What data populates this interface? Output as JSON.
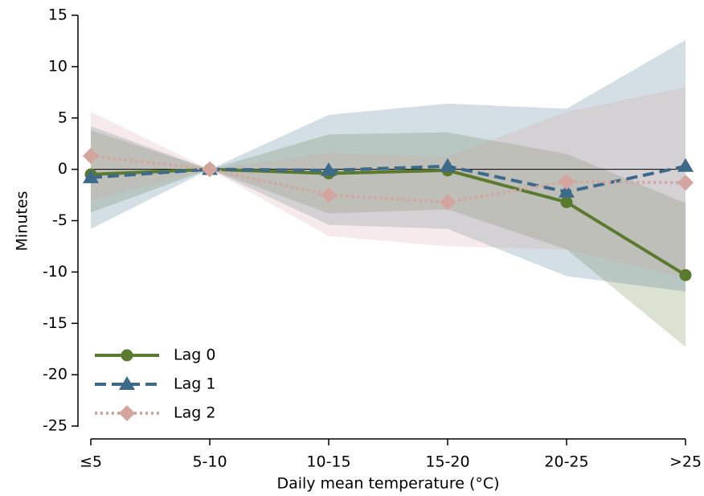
{
  "chart_data": {
    "type": "line",
    "x_label": "Daily mean temperature (°C)",
    "y_label": "Minutes",
    "categories": [
      "≤5",
      "5-10",
      "10-15",
      "15-20",
      "20-25",
      ">25"
    ],
    "ylim": [
      -25,
      15
    ],
    "yticks": [
      -25,
      -20,
      -15,
      -10,
      -5,
      0,
      5,
      10,
      15
    ],
    "hline": 0,
    "legend": "lower-left",
    "series": [
      {
        "name": "Lag 0",
        "color": "#5a7a2e",
        "marker": "circle",
        "dash": "solid",
        "values": [
          -0.5,
          0,
          -0.4,
          -0.1,
          -3.2,
          -10.3
        ],
        "lower": [
          -4.2,
          0,
          -4.3,
          -3.9,
          -7.8,
          -17.3
        ],
        "upper": [
          3.8,
          0,
          3.4,
          3.6,
          1.5,
          -3.3
        ]
      },
      {
        "name": "Lag 1",
        "color": "#3d6a8a",
        "marker": "triangle",
        "dash": "dashed",
        "values": [
          -0.8,
          0,
          -0.1,
          0.3,
          -2.2,
          0.3
        ],
        "lower": [
          -5.8,
          0,
          -5.4,
          -5.8,
          -10.4,
          -11.9
        ],
        "upper": [
          4.2,
          0,
          5.3,
          6.4,
          5.9,
          12.6
        ]
      },
      {
        "name": "Lag 2",
        "color": "#d4a59e",
        "marker": "diamond",
        "dash": "dotted",
        "values": [
          1.3,
          0,
          -2.5,
          -3.2,
          -1.2,
          -1.3
        ],
        "lower": [
          -3.0,
          0,
          -6.5,
          -7.5,
          -7.8,
          -10.6
        ],
        "upper": [
          5.6,
          0,
          1.6,
          1.2,
          5.6,
          8.0
        ]
      }
    ]
  }
}
